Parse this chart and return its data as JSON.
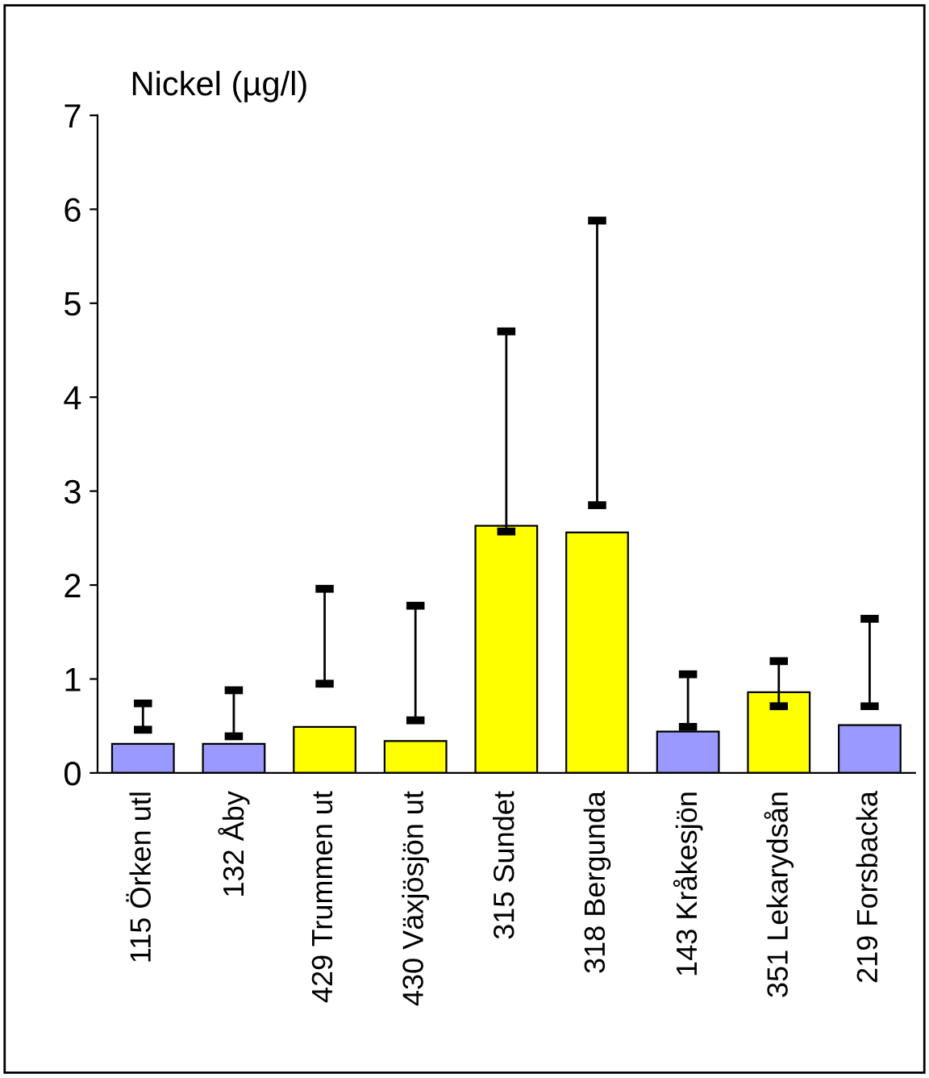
{
  "chart_data": {
    "type": "bar",
    "title": "Nickel (µg/l)",
    "categories": [
      "115 Örken utl",
      "132 Åby",
      "429 Trummen ut",
      "430 Växjösjön ut",
      "315 Sundet",
      "318 Bergunda",
      "143 Kråkesjön",
      "351 Lekarydsån",
      "219 Forsbacka"
    ],
    "values": [
      0.31,
      0.31,
      0.49,
      0.34,
      2.63,
      2.56,
      0.44,
      0.86,
      0.51
    ],
    "colors": [
      "#9999ff",
      "#9999ff",
      "#ffff00",
      "#ffff00",
      "#ffff00",
      "#ffff00",
      "#9999ff",
      "#ffff00",
      "#9999ff"
    ],
    "errors": [
      [
        0.46,
        0.74
      ],
      [
        0.39,
        0.88
      ],
      [
        0.95,
        1.96
      ],
      [
        0.56,
        1.78
      ],
      [
        2.57,
        4.7
      ],
      [
        2.85,
        5.88
      ],
      [
        0.49,
        1.05
      ],
      [
        0.71,
        1.19
      ],
      [
        0.71,
        1.64
      ]
    ],
    "ylim": [
      0,
      7
    ],
    "yticks": [
      0,
      1,
      2,
      3,
      4,
      5,
      6,
      7
    ],
    "grid": false,
    "legend": false
  }
}
